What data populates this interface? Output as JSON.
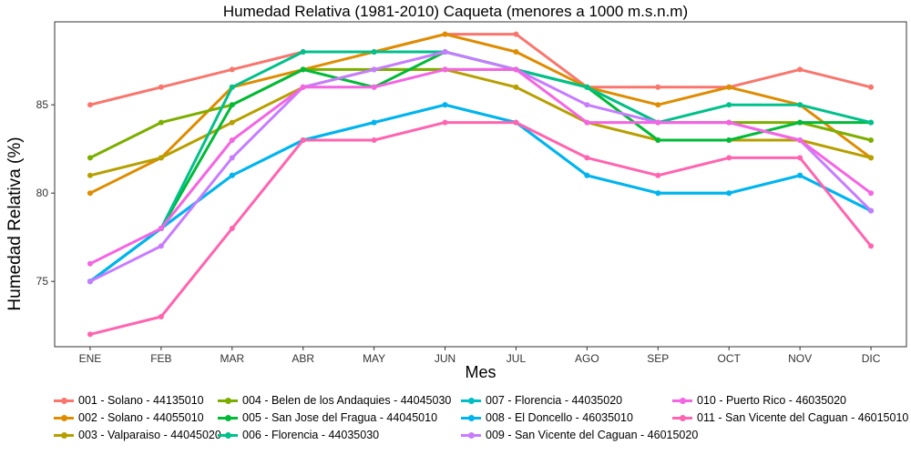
{
  "chart_data": {
    "type": "line",
    "title": "Humedad Relativa (1981-2010) Caqueta (menores a 1000 m.s.n.m)",
    "xlabel": "Mes",
    "ylabel": "Humedad Relativa (%)",
    "categories": [
      "ENE",
      "FEB",
      "MAR",
      "ABR",
      "MAY",
      "JUN",
      "JUL",
      "AGO",
      "SEP",
      "OCT",
      "NOV",
      "DIC"
    ],
    "y_ticks": [
      75,
      80,
      85
    ],
    "ylim": [
      71.3,
      89.7
    ],
    "grid": false,
    "legend_position": "bottom",
    "series": [
      {
        "name": "001 - Solano - 44135010",
        "color": "#F8766D",
        "values": [
          85,
          86,
          87,
          88,
          88,
          89,
          89,
          86,
          86,
          86,
          87,
          86
        ]
      },
      {
        "name": "002 - Solano - 44055010",
        "color": "#DE8C00",
        "values": [
          80,
          82,
          86,
          87,
          88,
          89,
          88,
          86,
          85,
          86,
          85,
          82
        ]
      },
      {
        "name": "003 - Valparaiso - 44045020",
        "color": "#B79F00",
        "values": [
          81,
          82,
          84,
          86,
          87,
          87,
          86,
          84,
          83,
          83,
          83,
          82
        ]
      },
      {
        "name": "004 - Belen de los Andaquies - 44045030",
        "color": "#7CAE00",
        "values": [
          82,
          84,
          85,
          87,
          87,
          87,
          87,
          86,
          84,
          84,
          84,
          83
        ]
      },
      {
        "name": "005 - San Jose del Fragua - 44045010",
        "color": "#00BA38",
        "values": [
          75,
          78,
          85,
          87,
          86,
          88,
          87,
          86,
          83,
          83,
          84,
          84
        ]
      },
      {
        "name": "006 - Florencia - 44035030",
        "color": "#00C08B",
        "values": [
          75,
          78,
          86,
          88,
          88,
          88,
          87,
          86,
          84,
          85,
          85,
          84
        ]
      },
      {
        "name": "007 - Florencia - 44035020",
        "color": "#00BFC4",
        "values": [
          75,
          78,
          81,
          83,
          84,
          85,
          84,
          81,
          80,
          80,
          81,
          79
        ]
      },
      {
        "name": "008 - El Doncello - 46035010",
        "color": "#00B4F0",
        "values": [
          75,
          78,
          81,
          83,
          84,
          85,
          84,
          81,
          80,
          80,
          81,
          79
        ]
      },
      {
        "name": "009 - San Vicente del Caguan - 46015020",
        "color": "#C77CFF",
        "values": [
          75,
          77,
          82,
          86,
          87,
          88,
          87,
          85,
          84,
          84,
          83,
          79
        ]
      },
      {
        "name": "010 - Puerto Rico - 46035020",
        "color": "#F564E3",
        "values": [
          76,
          78,
          83,
          86,
          86,
          87,
          87,
          84,
          84,
          84,
          83,
          80
        ]
      },
      {
        "name": "011 - San Vicente del Caguan - 46015010",
        "color": "#FF64B0",
        "values": [
          72,
          73,
          78,
          83,
          83,
          84,
          84,
          82,
          81,
          82,
          82,
          77
        ]
      }
    ]
  }
}
